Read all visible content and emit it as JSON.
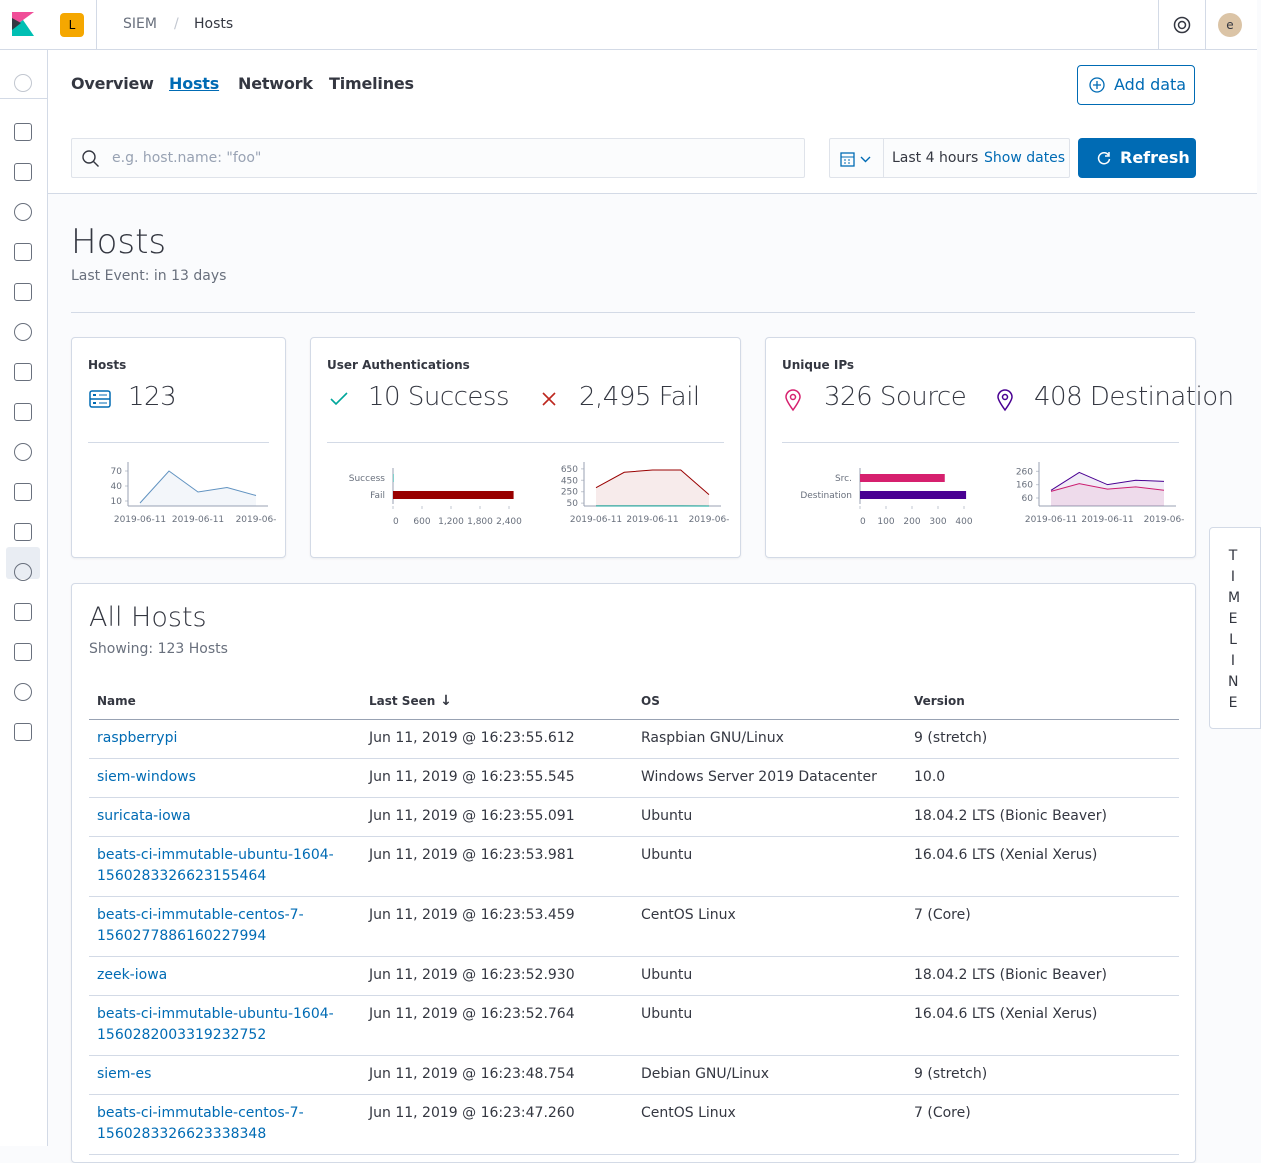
{
  "header": {
    "app_badge": "L",
    "breadcrumbs": [
      "SIEM",
      "Hosts"
    ],
    "avatar": "e"
  },
  "tabs": [
    "Overview",
    "Hosts",
    "Network",
    "Timelines"
  ],
  "add_data": "Add data",
  "search": {
    "placeholder": "e.g. host.name: \"foo\""
  },
  "time": {
    "range": "Last 4 hours",
    "show_dates": "Show dates",
    "refresh": "Refresh"
  },
  "page": {
    "title": "Hosts",
    "subtitle": "Last Event: in 13 days"
  },
  "kpis": [
    {
      "title": "Hosts",
      "stats": [
        123
      ],
      "charts": [
        {
          "type": "area",
          "ylim": [
            0,
            80
          ],
          "yticks": [
            10,
            40,
            70
          ],
          "xticks": [
            "2019-06-11",
            "2019-06-11",
            "2019-06-"
          ],
          "series": [
            {
              "color": "#6092c0",
              "values": [
                6,
                70,
                28,
                37,
                21
              ]
            }
          ]
        }
      ]
    },
    {
      "title": "User Authentications",
      "stats": [
        "10 Success",
        "2,495 Fail"
      ],
      "charts": [
        {
          "type": "hbar",
          "categories": [
            "Success",
            "Fail"
          ],
          "values": [
            10,
            2495
          ],
          "colors": [
            "#00a69b",
            "#990000"
          ],
          "xlim": [
            0,
            2400
          ],
          "xticks": [
            0,
            600,
            {
              "value": 1200,
              "label": "1,200"
            },
            {
              "value": 1800,
              "label": "1,800"
            },
            {
              "value": 2400,
              "label": "2,400"
            }
          ]
        },
        {
          "type": "area",
          "ylim": [
            0,
            700
          ],
          "yticks": [
            50,
            250,
            450,
            650
          ],
          "xticks": [
            "2019-06-11",
            "2019-06-11",
            "2019-06-"
          ],
          "series": [
            {
              "color": "#00a69b",
              "values": [
                3,
                2,
                2,
                2,
                1
              ]
            },
            {
              "color": "#990000",
              "values": [
                320,
                590,
                630,
                630,
                200
              ]
            }
          ]
        }
      ]
    },
    {
      "title": "Unique IPs",
      "stats": [
        "326 Source",
        "408 Destination"
      ],
      "charts": [
        {
          "type": "hbar",
          "categories": [
            "Src.",
            "Destination"
          ],
          "values": [
            326,
            408
          ],
          "colors": [
            "#d6206e",
            "#490092"
          ],
          "xlim": [
            0,
            400
          ],
          "xticks": [
            0,
            100,
            200,
            300,
            400
          ]
        },
        {
          "type": "area",
          "ylim": [
            0,
            300
          ],
          "yticks": [
            60,
            160,
            260
          ],
          "xticks": [
            "2019-06-11",
            "2019-06-11",
            "2019-06-"
          ],
          "series": [
            {
              "color": "#d6206e",
              "values": [
                110,
                168,
                127,
                143,
                118
              ]
            },
            {
              "color": "#490092",
              "values": [
                118,
                252,
                160,
                193,
                185
              ]
            }
          ]
        }
      ]
    }
  ],
  "table": {
    "title": "All Hosts",
    "subtitle": "Showing: 123 Hosts",
    "columns": [
      "Name",
      "Last Seen",
      "OS",
      "Version"
    ],
    "rows": [
      [
        "raspberrypi",
        "Jun 11, 2019 @ 16:23:55.612",
        "Raspbian GNU/Linux",
        "9 (stretch)"
      ],
      [
        "siem-windows",
        "Jun 11, 2019 @ 16:23:55.545",
        "Windows Server 2019 Datacenter",
        "10.0"
      ],
      [
        "suricata-iowa",
        "Jun 11, 2019 @ 16:23:55.091",
        "Ubuntu",
        "18.04.2 LTS (Bionic Beaver)"
      ],
      [
        "beats-ci-immutable-ubuntu-1604-1560283326623155464",
        "Jun 11, 2019 @ 16:23:53.981",
        "Ubuntu",
        "16.04.6 LTS (Xenial Xerus)"
      ],
      [
        "beats-ci-immutable-centos-7-1560277886160227994",
        "Jun 11, 2019 @ 16:23:53.459",
        "CentOS Linux",
        "7 (Core)"
      ],
      [
        "zeek-iowa",
        "Jun 11, 2019 @ 16:23:52.930",
        "Ubuntu",
        "18.04.2 LTS (Bionic Beaver)"
      ],
      [
        "beats-ci-immutable-ubuntu-1604-1560282003319232752",
        "Jun 11, 2019 @ 16:23:52.764",
        "Ubuntu",
        "16.04.6 LTS (Xenial Xerus)"
      ],
      [
        "siem-es",
        "Jun 11, 2019 @ 16:23:48.754",
        "Debian GNU/Linux",
        "9 (stretch)"
      ],
      [
        "beats-ci-immutable-centos-7-1560283326623338348",
        "Jun 11, 2019 @ 16:23:47.260",
        "CentOS Linux",
        "7 (Core)"
      ]
    ]
  },
  "timeline_tab": "TIMELINE"
}
